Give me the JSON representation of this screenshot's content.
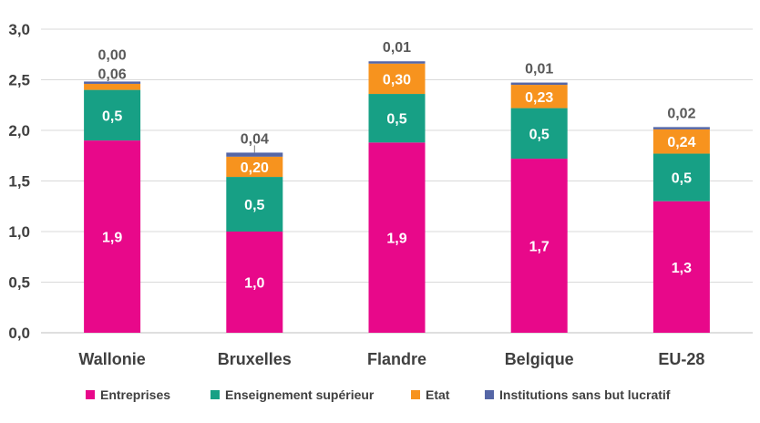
{
  "chart_data": {
    "type": "bar",
    "stacked": true,
    "categories": [
      "Wallonie",
      "Bruxelles",
      "Flandre",
      "Belgique",
      "EU-28"
    ],
    "ylim": [
      0,
      3.0
    ],
    "yticks": [
      "0,0",
      "0,5",
      "1,0",
      "1,5",
      "2,0",
      "2,5",
      "3,0"
    ],
    "title": "",
    "xlabel": "",
    "ylabel": "",
    "grid": true,
    "legend_position": "bottom",
    "series": [
      {
        "name": "Entreprises",
        "color": "#E8088A",
        "values": [
          1.9,
          1.0,
          1.88,
          1.72,
          1.3
        ],
        "labels": [
          "1,9",
          "1,0",
          "1,9",
          "1,7",
          "1,3"
        ]
      },
      {
        "name": "Enseignement supérieur",
        "color": "#17A085",
        "values": [
          0.5,
          0.54,
          0.48,
          0.5,
          0.47
        ],
        "labels": [
          "0,5",
          "0,5",
          "0,5",
          "0,5",
          "0,5"
        ]
      },
      {
        "name": "Etat",
        "color": "#F7931E",
        "values": [
          0.06,
          0.2,
          0.3,
          0.23,
          0.24
        ],
        "labels": [
          "0,06",
          "0,20",
          "0,30",
          "0,23",
          "0,24"
        ]
      },
      {
        "name": "Institutions sans but lucratif",
        "color": "#5566A6",
        "values": [
          0.0,
          0.04,
          0.01,
          0.01,
          0.02
        ],
        "labels": [
          "0,00",
          "0,04",
          "0,01",
          "0,01",
          "0,02"
        ]
      }
    ]
  }
}
